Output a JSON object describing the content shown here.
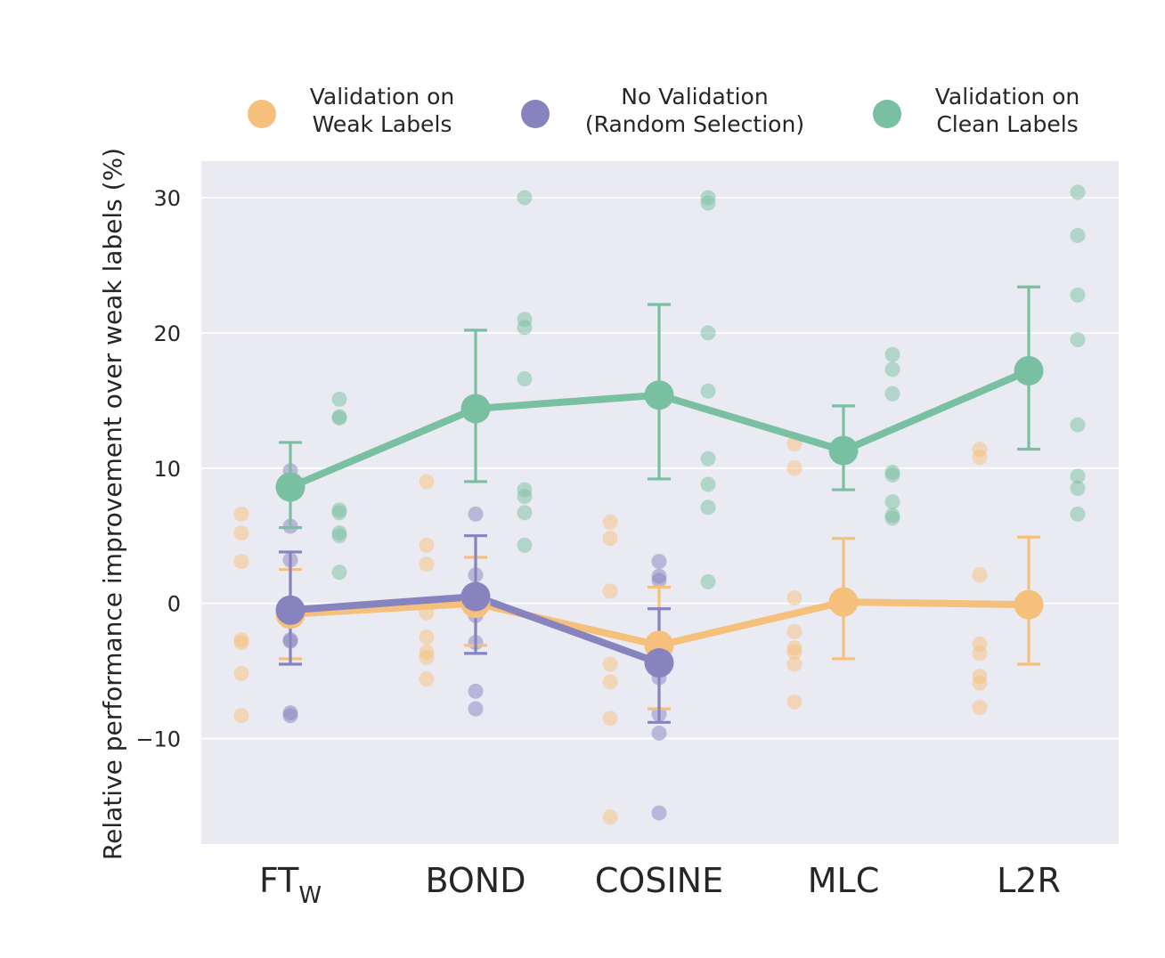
{
  "chart_data": {
    "type": "scatter",
    "title": "",
    "xlabel": "",
    "ylabel": "Relative performance improvement over weak labels (%)",
    "ylim": [
      -17.8,
      32.7
    ],
    "yticks": [
      -10,
      0,
      10,
      20,
      30
    ],
    "ytick_labels": [
      "−10",
      "0",
      "10",
      "20",
      "30"
    ],
    "grid": true,
    "legend_position": "top",
    "categories": [
      "FTW",
      "BOND",
      "COSINE",
      "MLC",
      "L2R"
    ],
    "category_labels": [
      {
        "main": "FT",
        "sub": "W"
      },
      {
        "main": "BOND",
        "sub": ""
      },
      {
        "main": "COSINE",
        "sub": ""
      },
      {
        "main": "MLC",
        "sub": ""
      },
      {
        "main": "L2R",
        "sub": ""
      }
    ],
    "series": [
      {
        "name": "Validation on Weak Labels",
        "legend_lines": [
          "Validation on",
          "Weak Labels"
        ],
        "color": "#f5c07c",
        "mean": [
          -0.8,
          0.0,
          -3.1,
          0.1,
          -0.1
        ],
        "error_low": [
          -4.1,
          -3.1,
          -7.8,
          -4.1,
          -4.5
        ],
        "error_high": [
          2.5,
          3.4,
          1.2,
          4.8,
          4.9
        ],
        "points": [
          [
            6.6,
            5.2,
            3.1,
            -2.7,
            -2.9,
            -5.2,
            -8.3
          ],
          [
            9.0,
            4.3,
            2.9,
            -0.7,
            -2.5,
            -3.6,
            -4.0,
            -5.6
          ],
          [
            6.0,
            4.8,
            0.9,
            -4.5,
            -5.8,
            -8.5,
            -15.8
          ],
          [
            11.8,
            10.0,
            0.4,
            -2.1,
            -3.3,
            -3.6,
            -4.5,
            -7.3
          ],
          [
            11.4,
            10.8,
            2.1,
            -3.0,
            -3.7,
            -5.4,
            -5.9,
            -7.7
          ]
        ]
      },
      {
        "name": "No Validation (Random Selection)",
        "legend_lines": [
          "No Validation",
          "(Random Selection)"
        ],
        "color": "#8783bf",
        "mean": [
          -0.5,
          0.5,
          -4.4,
          null,
          null
        ],
        "error_low": [
          -4.5,
          -3.7,
          -8.8,
          null,
          null
        ],
        "error_high": [
          3.8,
          5.0,
          -0.4,
          null,
          null
        ],
        "points": [
          [
            9.8,
            5.7,
            3.2,
            -2.7,
            -2.8,
            -8.1,
            -8.3
          ],
          [
            6.6,
            2.1,
            -0.9,
            -2.9,
            -6.5,
            -7.8
          ],
          [
            3.1,
            2.0,
            1.7,
            -5.5,
            -8.2,
            -9.6,
            -15.5
          ],
          [],
          []
        ]
      },
      {
        "name": "Validation on Clean Labels",
        "legend_lines": [
          "Validation on",
          "Clean Labels"
        ],
        "color": "#79bfa1",
        "mean": [
          8.6,
          14.4,
          15.4,
          11.3,
          17.2
        ],
        "error_low": [
          5.6,
          9.0,
          9.2,
          8.4,
          11.4
        ],
        "error_high": [
          11.9,
          20.2,
          22.1,
          14.6,
          23.4
        ],
        "points": [
          [
            15.1,
            13.8,
            13.7,
            6.9,
            6.7,
            5.2,
            5.0,
            2.3
          ],
          [
            30.0,
            21.0,
            20.4,
            16.6,
            8.4,
            7.9,
            6.7,
            4.3
          ],
          [
            30.0,
            29.6,
            20.0,
            15.7,
            10.7,
            8.8,
            7.1,
            1.6
          ],
          [
            18.4,
            17.3,
            15.5,
            9.7,
            9.5,
            7.5,
            6.5,
            6.3
          ],
          [
            30.4,
            27.2,
            22.8,
            19.5,
            13.2,
            9.4,
            8.5,
            6.6
          ]
        ]
      }
    ]
  }
}
